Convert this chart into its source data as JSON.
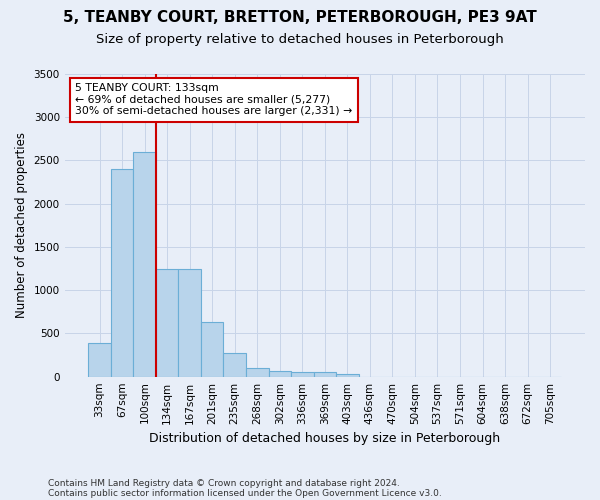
{
  "title_line1": "5, TEANBY COURT, BRETTON, PETERBOROUGH, PE3 9AT",
  "title_line2": "Size of property relative to detached houses in Peterborough",
  "xlabel": "Distribution of detached houses by size in Peterborough",
  "ylabel": "Number of detached properties",
  "footer_line1": "Contains HM Land Registry data © Crown copyright and database right 2024.",
  "footer_line2": "Contains public sector information licensed under the Open Government Licence v3.0.",
  "categories": [
    "33sqm",
    "67sqm",
    "100sqm",
    "134sqm",
    "167sqm",
    "201sqm",
    "235sqm",
    "268sqm",
    "302sqm",
    "336sqm",
    "369sqm",
    "403sqm",
    "436sqm",
    "470sqm",
    "504sqm",
    "537sqm",
    "571sqm",
    "604sqm",
    "638sqm",
    "672sqm",
    "705sqm"
  ],
  "values": [
    390,
    2400,
    2600,
    1250,
    1250,
    630,
    270,
    100,
    65,
    55,
    50,
    35,
    0,
    0,
    0,
    0,
    0,
    0,
    0,
    0,
    0
  ],
  "bar_color": "#b8d4eb",
  "bar_edge_color": "#6baed6",
  "grid_color": "#c8d4e8",
  "background_color": "#e8eef8",
  "vline_color": "#cc0000",
  "vline_x_index": 2.5,
  "annotation_text_line1": "5 TEANBY COURT: 133sqm",
  "annotation_text_line2": "← 69% of detached houses are smaller (5,277)",
  "annotation_text_line3": "30% of semi-detached houses are larger (2,331) →",
  "annotation_box_color": "white",
  "annotation_box_edge_color": "#cc0000",
  "ylim": [
    0,
    3500
  ],
  "yticks": [
    0,
    500,
    1000,
    1500,
    2000,
    2500,
    3000,
    3500
  ],
  "title_fontsize": 11,
  "subtitle_fontsize": 9.5,
  "ylabel_fontsize": 8.5,
  "xlabel_fontsize": 9,
  "tick_fontsize": 7.5,
  "annotation_fontsize": 7.8,
  "footer_fontsize": 6.5
}
